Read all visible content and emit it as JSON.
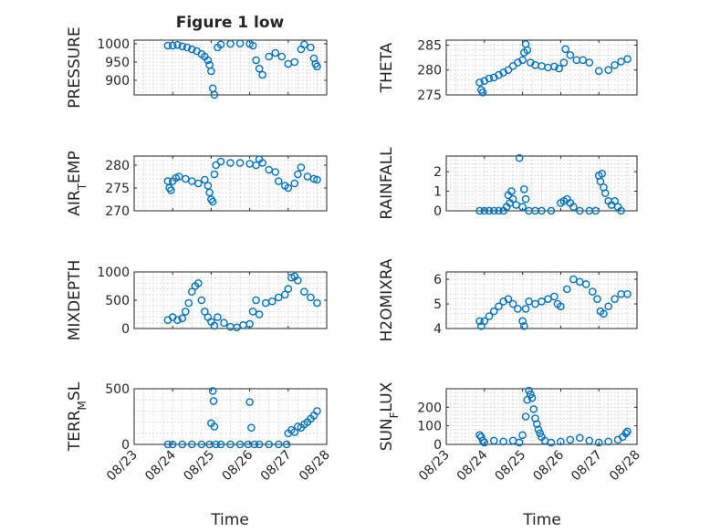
{
  "figure_title": "Figure 1 low",
  "marker_color": "#0072bd",
  "x_tick_labels": [
    "08/23",
    "08/24",
    "08/25",
    "08/26",
    "08/27",
    "08/28"
  ],
  "chart_data": [
    {
      "type": "scatter",
      "ylabel": "PRESSURE",
      "ylim": [
        860,
        1010
      ],
      "yticks": [
        900,
        950,
        1000
      ],
      "xlim": [
        "2023-08-23",
        "2023-08-28"
      ],
      "grid": true,
      "x": [
        "2023-08-23T21:00",
        "2023-08-24T00:00",
        "2023-08-24T03:00",
        "2023-08-24T06:00",
        "2023-08-24T09:00",
        "2023-08-24T12:00",
        "2023-08-24T15:00",
        "2023-08-24T18:00",
        "2023-08-24T20:00",
        "2023-08-24T22:00",
        "2023-08-24T23:00",
        "2023-08-25T00:00",
        "2023-08-25T01:00",
        "2023-08-25T02:00",
        "2023-08-25T04:00",
        "2023-08-25T06:00",
        "2023-08-25T12:00",
        "2023-08-25T18:00",
        "2023-08-26T00:00",
        "2023-08-26T02:00",
        "2023-08-26T04:00",
        "2023-08-26T06:00",
        "2023-08-26T08:00",
        "2023-08-26T12:00",
        "2023-08-26T16:00",
        "2023-08-26T20:00",
        "2023-08-27T00:00",
        "2023-08-27T04:00",
        "2023-08-27T08:00",
        "2023-08-27T10:00",
        "2023-08-27T14:00",
        "2023-08-27T16:00",
        "2023-08-27T17:00",
        "2023-08-27T18:00"
      ],
      "values": [
        995,
        995,
        997,
        993,
        990,
        985,
        980,
        972,
        965,
        955,
        942,
        925,
        878,
        860,
        990,
        998,
        1000,
        1001,
        1000,
        995,
        955,
        932,
        915,
        965,
        975,
        965,
        945,
        950,
        985,
        998,
        990,
        960,
        945,
        938
      ]
    },
    {
      "type": "scatter",
      "ylabel": "THETA",
      "ylim": [
        275,
        286
      ],
      "yticks": [
        275,
        280,
        285
      ],
      "xlim": [
        "2023-08-23",
        "2023-08-28"
      ],
      "grid": true,
      "x": [
        "2023-08-23T21:00",
        "2023-08-23T22:00",
        "2023-08-23T23:00",
        "2023-08-24T00:00",
        "2023-08-24T03:00",
        "2023-08-24T06:00",
        "2023-08-24T09:00",
        "2023-08-24T12:00",
        "2023-08-24T15:00",
        "2023-08-24T18:00",
        "2023-08-24T21:00",
        "2023-08-25T00:00",
        "2023-08-25T01:00",
        "2023-08-25T02:00",
        "2023-08-25T03:00",
        "2023-08-25T05:00",
        "2023-08-25T08:00",
        "2023-08-25T12:00",
        "2023-08-25T16:00",
        "2023-08-25T20:00",
        "2023-08-25T23:00",
        "2023-08-26T02:00",
        "2023-08-26T03:00",
        "2023-08-26T06:00",
        "2023-08-26T10:00",
        "2023-08-26T14:00",
        "2023-08-26T18:00",
        "2023-08-27T00:00",
        "2023-08-27T06:00",
        "2023-08-27T10:00",
        "2023-08-27T14:00",
        "2023-08-27T18:00"
      ],
      "values": [
        277.5,
        276,
        275.5,
        277.8,
        278.3,
        278.5,
        279,
        279.5,
        280,
        280.8,
        281.5,
        282,
        283.5,
        285.2,
        284,
        281.5,
        281,
        280.8,
        280.5,
        280.7,
        280.3,
        281.5,
        284.2,
        283,
        282,
        282,
        281.5,
        279.8,
        280,
        281,
        281.7,
        282.2
      ]
    },
    {
      "type": "scatter",
      "ylabel": "AIR_TEMP",
      "ylim": [
        270,
        282
      ],
      "yticks": [
        270,
        275,
        280
      ],
      "xlim": [
        "2023-08-23",
        "2023-08-28"
      ],
      "grid": true,
      "x": [
        "2023-08-23T21:00",
        "2023-08-23T22:00",
        "2023-08-23T23:00",
        "2023-08-24T00:00",
        "2023-08-24T02:00",
        "2023-08-24T04:00",
        "2023-08-24T08:00",
        "2023-08-24T12:00",
        "2023-08-24T16:00",
        "2023-08-24T20:00",
        "2023-08-24T22:00",
        "2023-08-24T23:00",
        "2023-08-25T00:00",
        "2023-08-25T01:00",
        "2023-08-25T02:00",
        "2023-08-25T03:00",
        "2023-08-25T06:00",
        "2023-08-25T12:00",
        "2023-08-25T18:00",
        "2023-08-26T00:00",
        "2023-08-26T04:00",
        "2023-08-26T06:00",
        "2023-08-26T08:00",
        "2023-08-26T12:00",
        "2023-08-26T16:00",
        "2023-08-26T18:00",
        "2023-08-26T22:00",
        "2023-08-27T00:00",
        "2023-08-27T04:00",
        "2023-08-27T06:00",
        "2023-08-27T08:00",
        "2023-08-27T12:00",
        "2023-08-27T16:00",
        "2023-08-27T18:00"
      ],
      "values": [
        276.5,
        275,
        274.5,
        276.5,
        277.2,
        277.5,
        277,
        276.5,
        276,
        276.8,
        275.5,
        274,
        272.5,
        272,
        278,
        280,
        280.8,
        280.5,
        280.5,
        280.3,
        280,
        281.3,
        280.5,
        279,
        278.5,
        276.5,
        275.5,
        275,
        276,
        278,
        279.5,
        277.5,
        277,
        276.8
      ]
    },
    {
      "type": "scatter",
      "ylabel": "RAINFALL",
      "ylim": [
        0,
        2.8
      ],
      "yticks": [
        0,
        1,
        2
      ],
      "xlim": [
        "2023-08-23",
        "2023-08-28"
      ],
      "grid": true,
      "x": [
        "2023-08-23T21:00",
        "2023-08-24T00:00",
        "2023-08-24T03:00",
        "2023-08-24T06:00",
        "2023-08-24T09:00",
        "2023-08-24T12:00",
        "2023-08-24T14:00",
        "2023-08-24T15:00",
        "2023-08-24T16:00",
        "2023-08-24T17:00",
        "2023-08-24T18:00",
        "2023-08-24T20:00",
        "2023-08-24T22:00",
        "2023-08-25T00:00",
        "2023-08-25T01:00",
        "2023-08-25T02:00",
        "2023-08-25T04:00",
        "2023-08-25T08:00",
        "2023-08-25T12:00",
        "2023-08-25T18:00",
        "2023-08-26T00:00",
        "2023-08-26T02:00",
        "2023-08-26T04:00",
        "2023-08-26T06:00",
        "2023-08-26T08:00",
        "2023-08-26T12:00",
        "2023-08-26T18:00",
        "2023-08-26T22:00",
        "2023-08-27T00:00",
        "2023-08-27T01:00",
        "2023-08-27T02:00",
        "2023-08-27T03:00",
        "2023-08-27T04:00",
        "2023-08-27T06:00",
        "2023-08-27T08:00",
        "2023-08-27T10:00",
        "2023-08-27T12:00",
        "2023-08-27T14:00"
      ],
      "values": [
        0,
        0,
        0,
        0,
        0,
        0,
        0.2,
        0.8,
        0.4,
        1.0,
        0.6,
        0.3,
        2.7,
        0.2,
        1.1,
        0.6,
        0,
        0,
        0,
        0,
        0.4,
        0.5,
        0.6,
        0.4,
        0.2,
        0,
        0,
        0,
        1.8,
        1.5,
        1.9,
        1.2,
        0.9,
        0.5,
        0.3,
        0.5,
        0.2,
        0
      ]
    },
    {
      "type": "scatter",
      "ylabel": "MIXDEPTH",
      "ylim": [
        0,
        1000
      ],
      "yticks": [
        0,
        500,
        1000
      ],
      "xlim": [
        "2023-08-23",
        "2023-08-28"
      ],
      "grid": true,
      "x": [
        "2023-08-23T21:00",
        "2023-08-24T00:00",
        "2023-08-24T03:00",
        "2023-08-24T06:00",
        "2023-08-24T08:00",
        "2023-08-24T10:00",
        "2023-08-24T12:00",
        "2023-08-24T14:00",
        "2023-08-24T16:00",
        "2023-08-24T18:00",
        "2023-08-24T20:00",
        "2023-08-24T22:00",
        "2023-08-25T00:00",
        "2023-08-25T02:00",
        "2023-08-25T04:00",
        "2023-08-25T08:00",
        "2023-08-25T12:00",
        "2023-08-25T16:00",
        "2023-08-25T20:00",
        "2023-08-26T00:00",
        "2023-08-26T02:00",
        "2023-08-26T04:00",
        "2023-08-26T06:00",
        "2023-08-26T10:00",
        "2023-08-26T14:00",
        "2023-08-26T18:00",
        "2023-08-26T22:00",
        "2023-08-27T00:00",
        "2023-08-27T02:00",
        "2023-08-27T04:00",
        "2023-08-27T06:00",
        "2023-08-27T10:00",
        "2023-08-27T14:00",
        "2023-08-27T18:00"
      ],
      "values": [
        150,
        200,
        150,
        180,
        300,
        450,
        650,
        750,
        800,
        500,
        300,
        200,
        120,
        50,
        200,
        100,
        30,
        20,
        60,
        80,
        300,
        500,
        250,
        450,
        480,
        550,
        600,
        700,
        900,
        920,
        850,
        650,
        550,
        450
      ]
    },
    {
      "type": "scatter",
      "ylabel": "H2OMIXRA",
      "ylim": [
        4,
        6.3
      ],
      "yticks": [
        4,
        5,
        6
      ],
      "xlim": [
        "2023-08-23",
        "2023-08-28"
      ],
      "grid": true,
      "x": [
        "2023-08-23T21:00",
        "2023-08-23T22:00",
        "2023-08-24T00:00",
        "2023-08-24T03:00",
        "2023-08-24T06:00",
        "2023-08-24T09:00",
        "2023-08-24T12:00",
        "2023-08-24T15:00",
        "2023-08-24T18:00",
        "2023-08-24T21:00",
        "2023-08-25T00:00",
        "2023-08-25T01:00",
        "2023-08-25T02:00",
        "2023-08-25T04:00",
        "2023-08-25T08:00",
        "2023-08-25T12:00",
        "2023-08-25T16:00",
        "2023-08-25T20:00",
        "2023-08-25T22:00",
        "2023-08-26T00:00",
        "2023-08-26T04:00",
        "2023-08-26T08:00",
        "2023-08-26T12:00",
        "2023-08-26T16:00",
        "2023-08-26T20:00",
        "2023-08-26T23:00",
        "2023-08-27T01:00",
        "2023-08-27T03:00",
        "2023-08-27T06:00",
        "2023-08-27T10:00",
        "2023-08-27T14:00",
        "2023-08-27T18:00"
      ],
      "values": [
        4.3,
        4.1,
        4.3,
        4.5,
        4.7,
        4.9,
        5.1,
        5.2,
        5.0,
        4.8,
        4.3,
        4.1,
        4.8,
        5.1,
        5.0,
        5.1,
        5.2,
        5.3,
        5.0,
        4.9,
        5.6,
        6.0,
        5.9,
        5.8,
        5.5,
        5.2,
        4.7,
        4.6,
        4.9,
        5.2,
        5.4,
        5.4
      ]
    },
    {
      "type": "scatter",
      "ylabel": "TERR_MSL",
      "ylim": [
        0,
        500
      ],
      "yticks": [
        0,
        500
      ],
      "xlim": [
        "2023-08-23",
        "2023-08-28"
      ],
      "grid": true,
      "x": [
        "2023-08-23T21:00",
        "2023-08-24T00:00",
        "2023-08-24T06:00",
        "2023-08-24T12:00",
        "2023-08-24T18:00",
        "2023-08-24T23:00",
        "2023-08-25T00:00",
        "2023-08-25T01:00",
        "2023-08-25T01:30",
        "2023-08-25T02:00",
        "2023-08-25T03:00",
        "2023-08-25T06:00",
        "2023-08-25T12:00",
        "2023-08-25T18:00",
        "2023-08-25T23:00",
        "2023-08-26T00:00",
        "2023-08-26T01:00",
        "2023-08-26T03:00",
        "2023-08-26T06:00",
        "2023-08-26T12:00",
        "2023-08-26T18:00",
        "2023-08-26T23:00",
        "2023-08-27T00:00",
        "2023-08-27T02:00",
        "2023-08-27T04:00",
        "2023-08-27T06:00",
        "2023-08-27T08:00",
        "2023-08-27T10:00",
        "2023-08-27T12:00",
        "2023-08-27T14:00",
        "2023-08-27T16:00",
        "2023-08-27T18:00"
      ],
      "values": [
        0,
        0,
        0,
        0,
        0,
        0,
        190,
        480,
        390,
        160,
        0,
        0,
        0,
        0,
        0,
        380,
        150,
        0,
        0,
        0,
        0,
        0,
        100,
        130,
        110,
        160,
        150,
        180,
        200,
        230,
        260,
        300
      ]
    },
    {
      "type": "scatter",
      "ylabel": "SUN_FLUX",
      "ylim": [
        0,
        300
      ],
      "yticks": [
        0,
        100,
        200
      ],
      "xlim": [
        "2023-08-23",
        "2023-08-28"
      ],
      "grid": true,
      "x": [
        "2023-08-23T21:00",
        "2023-08-23T22:00",
        "2023-08-23T23:00",
        "2023-08-24T00:00",
        "2023-08-24T06:00",
        "2023-08-24T12:00",
        "2023-08-24T18:00",
        "2023-08-24T22:00",
        "2023-08-25T00:00",
        "2023-08-25T02:00",
        "2023-08-25T03:00",
        "2023-08-25T04:00",
        "2023-08-25T05:00",
        "2023-08-25T06:00",
        "2023-08-25T07:00",
        "2023-08-25T08:00",
        "2023-08-25T09:00",
        "2023-08-25T10:00",
        "2023-08-25T11:00",
        "2023-08-25T12:00",
        "2023-08-25T14:00",
        "2023-08-25T18:00",
        "2023-08-26T00:00",
        "2023-08-26T06:00",
        "2023-08-26T12:00",
        "2023-08-26T18:00",
        "2023-08-27T00:00",
        "2023-08-27T06:00",
        "2023-08-27T12:00",
        "2023-08-27T15:00",
        "2023-08-27T17:00",
        "2023-08-27T18:00"
      ],
      "values": [
        50,
        40,
        20,
        10,
        20,
        15,
        20,
        10,
        50,
        150,
        240,
        290,
        270,
        250,
        190,
        140,
        110,
        80,
        60,
        40,
        20,
        10,
        15,
        25,
        35,
        20,
        10,
        15,
        25,
        40,
        60,
        70
      ]
    }
  ]
}
